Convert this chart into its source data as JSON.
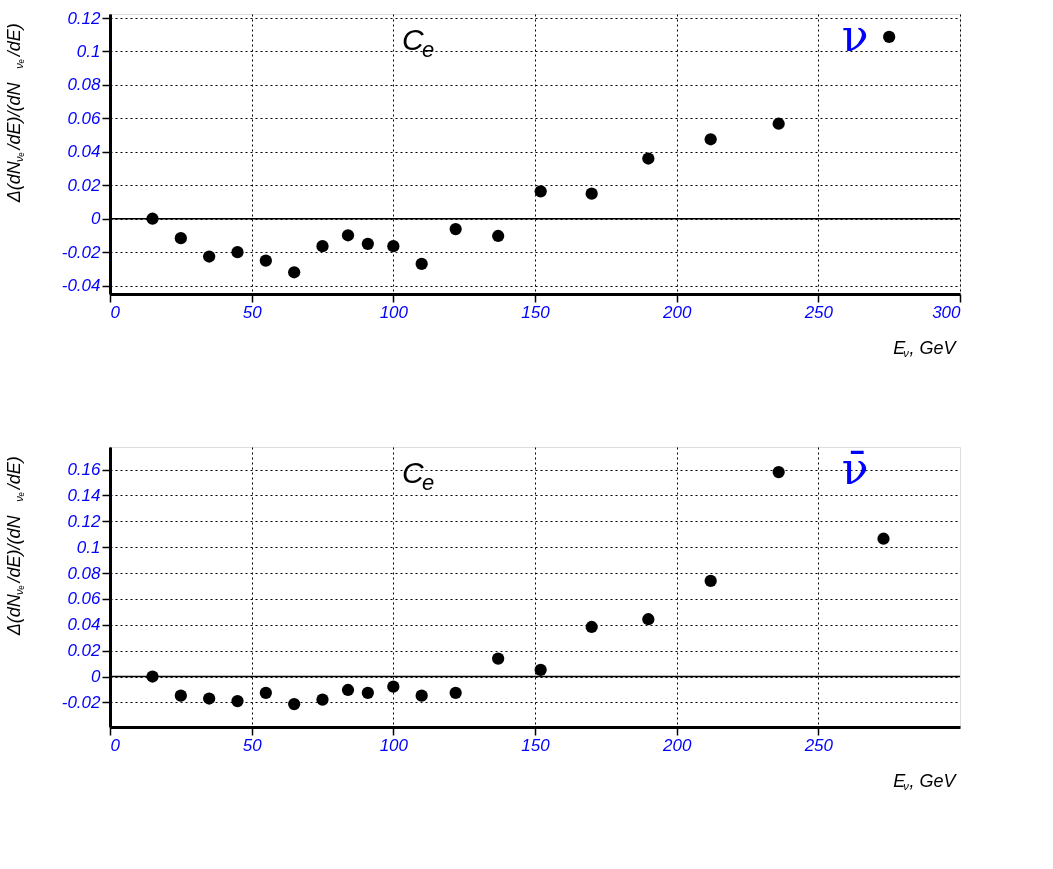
{
  "chart_data": [
    {
      "type": "scatter",
      "xlabel": "E$_{ν}$, GeV",
      "ylabel": "Δ(dN$_{νₑ}$/dE)/(dN$_{νₑ}$/dE)",
      "annotations": [
        "C$_{e}$",
        "ν"
      ],
      "x": [
        15,
        25,
        35,
        45,
        55,
        65,
        75,
        84,
        91,
        100,
        110,
        122,
        137,
        152,
        170,
        190,
        212,
        236,
        275
      ],
      "series": [
        {
          "color": "#000000",
          "values": [
            0,
            -0.0116,
            -0.0226,
            -0.02,
            -0.025,
            -0.032,
            -0.0164,
            -0.0099,
            -0.015,
            -0.0164,
            -0.027,
            -0.0062,
            -0.0103,
            0.0164,
            0.015,
            0.036,
            0.0475,
            0.0568,
            0.1087
          ]
        }
      ],
      "xlim": [
        0,
        300
      ],
      "xticks": [
        0,
        50,
        100,
        150,
        200,
        250,
        300
      ],
      "ylim": [
        -0.045,
        0.1224
      ],
      "yticks": [
        -0.04,
        -0.02,
        0,
        0.02,
        0.04,
        0.06,
        0.08,
        0.1,
        0.12
      ],
      "ref_lines": [
        {
          "axis": "y",
          "value": 0,
          "color": "#000000",
          "line_style": "solid"
        }
      ],
      "grid": true,
      "marker": "circle"
    },
    {
      "type": "scatter",
      "xlabel": "E$_{ν}$, GeV",
      "ylabel": "Δ(dN$_{νₑ}$/dE)/(dN$_{νₑ}$/dE)",
      "annotations": [
        "C$_{e}$",
        "ν̄"
      ],
      "x": [
        15,
        25,
        35,
        45,
        55,
        65,
        75,
        84,
        91,
        100,
        110,
        122,
        137,
        152,
        170,
        190,
        212,
        236,
        273
      ],
      "series": [
        {
          "color": "#000000",
          "values": [
            0,
            -0.0148,
            -0.017,
            -0.019,
            -0.0126,
            -0.0213,
            -0.0178,
            -0.0104,
            -0.0126,
            -0.0078,
            -0.0148,
            -0.0126,
            0.0139,
            0.0052,
            0.0383,
            0.0443,
            0.0739,
            0.158,
            0.1065
          ]
        }
      ],
      "xlim": [
        0,
        300
      ],
      "xticks": [
        0,
        50,
        100,
        150,
        200,
        250
      ],
      "ylim": [
        -0.039,
        0.1774
      ],
      "yticks": [
        -0.02,
        0,
        0.02,
        0.04,
        0.06,
        0.08,
        0.1,
        0.12,
        0.14,
        0.16
      ],
      "ref_lines": [
        {
          "axis": "y",
          "value": 0,
          "color": "#000000",
          "line_style": "solid"
        }
      ],
      "grid": true,
      "marker": "circle"
    }
  ]
}
